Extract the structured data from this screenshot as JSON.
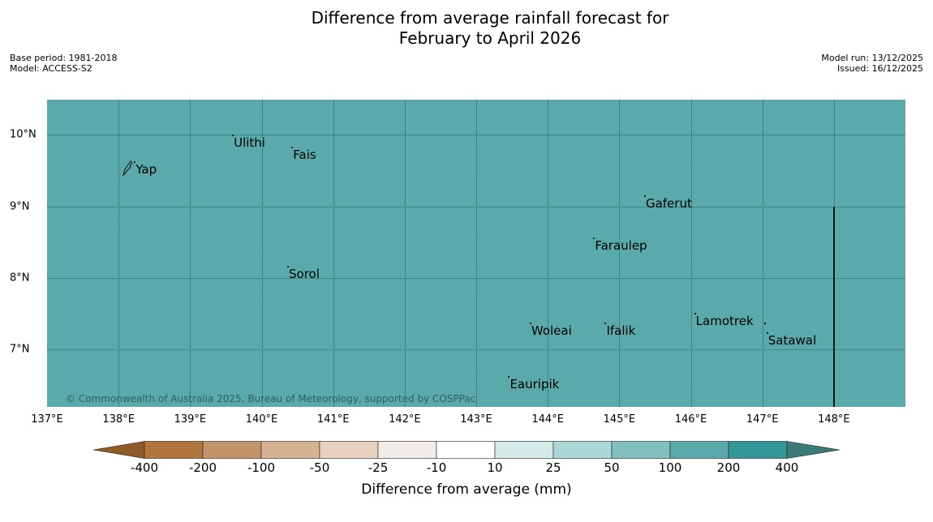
{
  "title_line1": "Difference from average rainfall forecast for",
  "title_line2": "February to April 2026",
  "meta_left": [
    "Base period: 1981-2018",
    "Model: ACCESS-S2"
  ],
  "meta_right": [
    "Model run: 13/12/2025",
    "Issued: 16/12/2025"
  ],
  "map": {
    "lon_range": [
      137.0,
      149.0
    ],
    "lat_range": [
      6.2,
      10.49
    ],
    "fill_color": "#5aaaab",
    "lon_ticks": [
      {
        "v": 137,
        "label": "137°E"
      },
      {
        "v": 138,
        "label": "138°E"
      },
      {
        "v": 139,
        "label": "139°E"
      },
      {
        "v": 140,
        "label": "140°E"
      },
      {
        "v": 141,
        "label": "141°E"
      },
      {
        "v": 142,
        "label": "142°E"
      },
      {
        "v": 143,
        "label": "143°E"
      },
      {
        "v": 144,
        "label": "144°E"
      },
      {
        "v": 145,
        "label": "145°E"
      },
      {
        "v": 146,
        "label": "146°E"
      },
      {
        "v": 147,
        "label": "147°E"
      },
      {
        "v": 148,
        "label": "148°E"
      }
    ],
    "lat_ticks": [
      {
        "v": 10,
        "label": "10°N"
      },
      {
        "v": 9,
        "label": "9°N"
      },
      {
        "v": 8,
        "label": "8°N"
      },
      {
        "v": 7,
        "label": "7°N"
      }
    ],
    "islands": [
      {
        "name": "Yap",
        "lon": 138.24,
        "lat": 9.52
      },
      {
        "name": "Ulithi",
        "lon": 139.61,
        "lat": 9.89
      },
      {
        "name": "Fais",
        "lon": 140.44,
        "lat": 9.72
      },
      {
        "name": "Gaferut",
        "lon": 145.37,
        "lat": 9.04
      },
      {
        "name": "Faraulep",
        "lon": 144.66,
        "lat": 8.45
      },
      {
        "name": "Sorol",
        "lon": 140.38,
        "lat": 8.06
      },
      {
        "name": "Lamotrek",
        "lon": 146.07,
        "lat": 7.4
      },
      {
        "name": "Woleai",
        "lon": 143.77,
        "lat": 7.26
      },
      {
        "name": "Ifalik",
        "lon": 144.82,
        "lat": 7.26
      },
      {
        "name": "Satawal",
        "lon": 147.08,
        "lat": 7.13
      },
      {
        "name": "Eauripik",
        "lon": 143.47,
        "lat": 6.52
      }
    ],
    "boundary": {
      "lon": 148.0,
      "lat_from": 9.0,
      "lat_to": 6.2
    },
    "copyright": "© Commonwealth of Australia 2025, Bureau of Meteorology, supported by COSPPac"
  },
  "colorbar": {
    "title": "Difference from average (mm)",
    "labels": [
      "-400",
      "-200",
      "-100",
      "-50",
      "-25",
      "-10",
      "10",
      "25",
      "50",
      "100",
      "200",
      "400"
    ],
    "low_extend_color": "#8f5a26",
    "colors": [
      "#b0763e",
      "#c19469",
      "#d4b292",
      "#e6d2bf",
      "#f0ede8",
      "#ffffff",
      "#d4ebe9",
      "#abd7d6",
      "#82c0bf",
      "#5aaaab",
      "#329797"
    ],
    "high_extend_color": "#3a7a78"
  }
}
